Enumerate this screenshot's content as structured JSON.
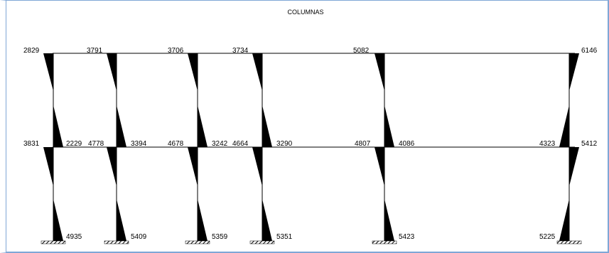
{
  "title": "COLUMNAS",
  "colors": {
    "frame_line": "#000000",
    "moment_fill": "#000000",
    "panel_border": "#7fa7d6",
    "background": "#ffffff"
  },
  "columns": [
    {
      "id": "col-1",
      "upper": {
        "top": "2829",
        "bottom": "3831"
      },
      "lower": {
        "top": "2229",
        "bottom": "4935"
      }
    },
    {
      "id": "col-2",
      "upper": {
        "top": "3791",
        "bottom": "4778"
      },
      "lower": {
        "top": "3394",
        "bottom": "5409"
      }
    },
    {
      "id": "col-3",
      "upper": {
        "top": "3706",
        "bottom": "4678"
      },
      "lower": {
        "top": "3242",
        "bottom": "5359"
      }
    },
    {
      "id": "col-4",
      "upper": {
        "top": "3734",
        "bottom": "4664"
      },
      "lower": {
        "top": "3290",
        "bottom": "5351"
      }
    },
    {
      "id": "col-5",
      "upper": {
        "top": "5082",
        "bottom": "4807"
      },
      "lower": {
        "top": "4086",
        "bottom": "5423"
      }
    },
    {
      "id": "col-6",
      "upper": {
        "top": "6146",
        "bottom": "5412"
      },
      "lower": {
        "top": "4323",
        "bottom": "5225"
      }
    }
  ]
}
